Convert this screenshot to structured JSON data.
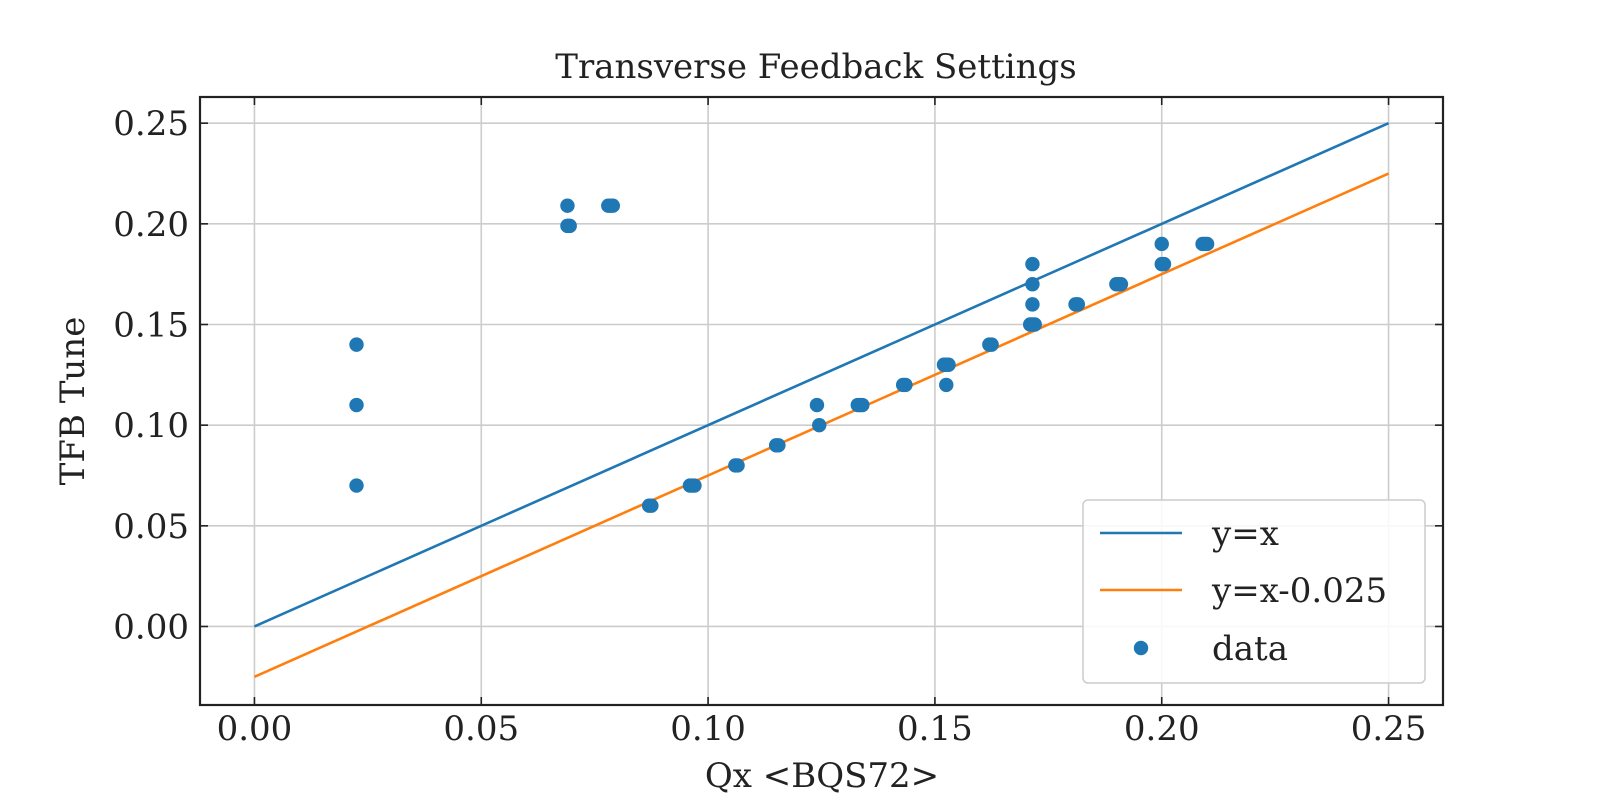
{
  "chart_data": {
    "type": "scatter",
    "title": "Transverse Feedback Settings",
    "xlabel": "Qx <BQS72>",
    "ylabel": "TFB Tune",
    "xlim": [
      -0.012,
      0.262
    ],
    "ylim": [
      -0.039,
      0.263
    ],
    "xticks": [
      0.0,
      0.05,
      0.1,
      0.15,
      0.2,
      0.25
    ],
    "xtick_labels": [
      "0.00",
      "0.05",
      "0.10",
      "0.15",
      "0.20",
      "0.25"
    ],
    "yticks": [
      0.0,
      0.05,
      0.1,
      0.15,
      0.2,
      0.25
    ],
    "ytick_labels": [
      "0.00",
      "0.05",
      "0.10",
      "0.15",
      "0.20",
      "0.25"
    ],
    "grid": true,
    "legend_position": "lower-right",
    "series": [
      {
        "name": "y=x",
        "kind": "line",
        "color": "#1f77b4",
        "x": [
          0.0,
          0.25
        ],
        "y": [
          0.0,
          0.25
        ]
      },
      {
        "name": "y=x-0.025",
        "kind": "line",
        "color": "#ff7f0e",
        "x": [
          0.0,
          0.25
        ],
        "y": [
          -0.025,
          0.225
        ]
      },
      {
        "name": "data",
        "kind": "scatter",
        "color": "#1f77b4",
        "points": [
          [
            0.0225,
            0.14
          ],
          [
            0.0225,
            0.11
          ],
          [
            0.0225,
            0.07
          ],
          [
            0.069,
            0.209
          ],
          [
            0.069,
            0.199
          ],
          [
            0.0695,
            0.199
          ],
          [
            0.078,
            0.209
          ],
          [
            0.0785,
            0.209
          ],
          [
            0.079,
            0.209
          ],
          [
            0.087,
            0.06
          ],
          [
            0.0875,
            0.06
          ],
          [
            0.096,
            0.07
          ],
          [
            0.0965,
            0.07
          ],
          [
            0.097,
            0.07
          ],
          [
            0.106,
            0.08
          ],
          [
            0.1065,
            0.08
          ],
          [
            0.115,
            0.09
          ],
          [
            0.1155,
            0.09
          ],
          [
            0.124,
            0.11
          ],
          [
            0.1245,
            0.1
          ],
          [
            0.133,
            0.11
          ],
          [
            0.1335,
            0.11
          ],
          [
            0.134,
            0.11
          ],
          [
            0.143,
            0.12
          ],
          [
            0.1435,
            0.12
          ],
          [
            0.152,
            0.13
          ],
          [
            0.1525,
            0.13
          ],
          [
            0.153,
            0.13
          ],
          [
            0.1525,
            0.12
          ],
          [
            0.162,
            0.14
          ],
          [
            0.1625,
            0.14
          ],
          [
            0.171,
            0.15
          ],
          [
            0.1715,
            0.15
          ],
          [
            0.172,
            0.15
          ],
          [
            0.1715,
            0.16
          ],
          [
            0.1715,
            0.17
          ],
          [
            0.1715,
            0.18
          ],
          [
            0.181,
            0.16
          ],
          [
            0.1815,
            0.16
          ],
          [
            0.19,
            0.17
          ],
          [
            0.1905,
            0.17
          ],
          [
            0.191,
            0.17
          ],
          [
            0.2,
            0.19
          ],
          [
            0.2,
            0.18
          ],
          [
            0.2005,
            0.18
          ],
          [
            0.209,
            0.19
          ],
          [
            0.2095,
            0.19
          ],
          [
            0.21,
            0.19
          ]
        ]
      }
    ]
  }
}
